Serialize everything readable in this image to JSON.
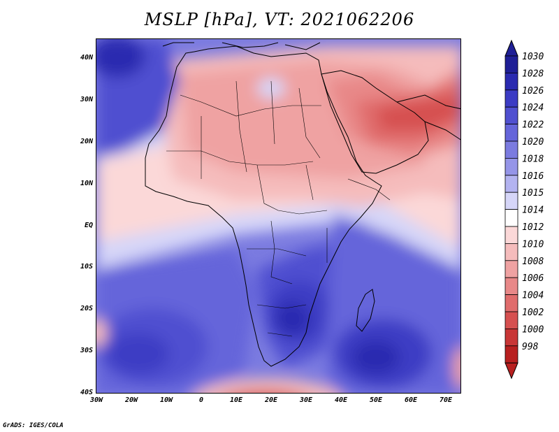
{
  "title": "MSLP [hPa], VT: 2021062206",
  "latitude_labels": [
    "40N",
    "30N",
    "20N",
    "10N",
    "EQ",
    "10S",
    "20S",
    "30S",
    "40S"
  ],
  "longitude_labels": [
    "30W",
    "20W",
    "10W",
    "0",
    "10E",
    "20E",
    "30E",
    "40E",
    "50E",
    "60E",
    "70E"
  ],
  "colorbar": {
    "levels": [
      "1030",
      "1028",
      "1026",
      "1024",
      "1022",
      "1020",
      "1018",
      "1016",
      "1015",
      "1014",
      "1012",
      "1010",
      "1008",
      "1006",
      "1004",
      "1002",
      "1000",
      "998"
    ],
    "colors": [
      "#1f1f96",
      "#2a2ab0",
      "#3c3cc4",
      "#5050d0",
      "#6565da",
      "#7b7be0",
      "#9595e8",
      "#b3b3f0",
      "#d6d6f8",
      "#ffffff",
      "#fbd8d8",
      "#f5bcbc",
      "#efa2a2",
      "#e88888",
      "#e06c6c",
      "#d65050",
      "#c83636",
      "#b82020"
    ]
  },
  "credit": "GrADS: IGES/COLA"
}
